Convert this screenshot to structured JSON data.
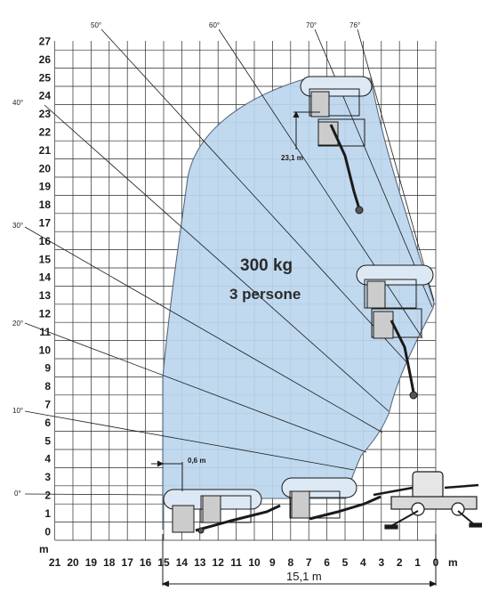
{
  "diagram": {
    "y_ticks": [
      "0",
      "1",
      "2",
      "3",
      "4",
      "5",
      "6",
      "7",
      "8",
      "9",
      "10",
      "11",
      "12",
      "13",
      "14",
      "15",
      "16",
      "17",
      "18",
      "19",
      "20",
      "21",
      "22",
      "23",
      "24",
      "25",
      "26",
      "27"
    ],
    "x_ticks": [
      "21",
      "20",
      "19",
      "18",
      "17",
      "16",
      "15",
      "14",
      "13",
      "12",
      "11",
      "10",
      "9",
      "8",
      "7",
      "6",
      "5",
      "4",
      "3",
      "2",
      "1",
      "0"
    ],
    "y_unit": "m",
    "x_unit": "m",
    "angle_labels": {
      "a0": "0°",
      "a10": "10°",
      "a20": "20°",
      "a30": "30°",
      "a40": "40°",
      "a50": "50°",
      "a60": "60°",
      "a70": "70°",
      "a76": "76°"
    },
    "capacity": "300 kg",
    "persons": "3 persone",
    "height_dim": "23,1  m",
    "offset_dim": "0,6  m",
    "outreach_dim": "15,1 m",
    "colors": {
      "envelope_fill": "#bcd6ee",
      "envelope_stroke": "#4a5d72",
      "grid": "#2a2a2a"
    }
  }
}
